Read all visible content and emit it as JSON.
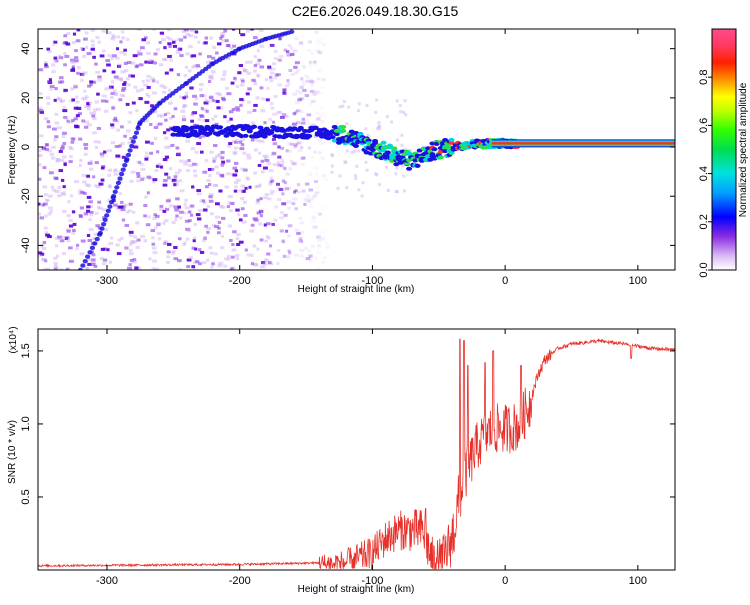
{
  "title": "C2E6.2026.049.18.30.G15",
  "chart_data": [
    {
      "type": "heatmap",
      "name": "spectrogram",
      "xlabel": "Height of straight line (km)",
      "ylabel": "Frequency (Hz)",
      "xlim": [
        -352,
        128
      ],
      "ylim": [
        -50,
        48
      ],
      "xticks": [
        -300,
        -200,
        -100,
        0,
        100
      ],
      "yticks": [
        -40,
        -20,
        0,
        20,
        40
      ],
      "colorbar": {
        "label": "Normalized spectral amplitude",
        "range": [
          0,
          1
        ],
        "ticks": [
          "0.0",
          "0.2",
          "0.4",
          "0.6",
          "0.8"
        ],
        "tick_values": [
          0,
          0.2,
          0.4,
          0.6,
          0.8
        ]
      },
      "noise_region_x": [
        -352,
        -132
      ],
      "main_line": [
        [
          -250,
          6
        ],
        [
          -200,
          6.5
        ],
        [
          -150,
          6
        ],
        [
          -120,
          5
        ],
        [
          -100,
          0
        ],
        [
          -80,
          -4
        ],
        [
          -70,
          -6
        ],
        [
          -60,
          -3
        ],
        [
          -50,
          -1
        ],
        [
          -40,
          0
        ],
        [
          -30,
          1
        ],
        [
          -10,
          1.5
        ],
        [
          0,
          1.5
        ],
        [
          20,
          1.5
        ],
        [
          60,
          1.5
        ],
        [
          100,
          1.5
        ],
        [
          128,
          1.5
        ]
      ],
      "secondary_traces": [
        {
          "name": "descending-trace",
          "points": [
            [
              -320,
              -50
            ],
            [
              -305,
              -35
            ],
            [
              -295,
              -20
            ],
            [
              -285,
              -5
            ],
            [
              -275,
              10
            ]
          ]
        },
        {
          "name": "ascending-trace",
          "points": [
            [
              -275,
              10
            ],
            [
              -260,
              18
            ],
            [
              -240,
              26
            ],
            [
              -220,
              34
            ],
            [
              -200,
              40
            ],
            [
              -180,
              44
            ],
            [
              -160,
              47
            ]
          ]
        }
      ]
    },
    {
      "type": "line",
      "name": "snr",
      "xlabel": "Height of straight line (km)",
      "ylabel": "SNR (10 * v/v)",
      "multiplier": "(x10⁴)",
      "xlim": [
        -352,
        128
      ],
      "ylim": [
        0,
        1.65
      ],
      "xticks": [
        -300,
        -200,
        -100,
        0,
        100
      ],
      "yticks": [
        "0.5",
        "1.0",
        "1.5"
      ],
      "ytick_values": [
        0.5,
        1.0,
        1.5
      ],
      "color": "#e8302a",
      "envelope": [
        [
          -352,
          0.03
        ],
        [
          -200,
          0.04
        ],
        [
          -140,
          0.05
        ],
        [
          -120,
          0.07
        ],
        [
          -100,
          0.14
        ],
        [
          -90,
          0.24
        ],
        [
          -80,
          0.3
        ],
        [
          -70,
          0.3
        ],
        [
          -62,
          0.3
        ],
        [
          -55,
          0.1
        ],
        [
          -48,
          0.08
        ],
        [
          -40,
          0.25
        ],
        [
          -35,
          0.5
        ],
        [
          -30,
          0.68
        ],
        [
          -25,
          0.8
        ],
        [
          -20,
          0.9
        ],
        [
          -10,
          1.0
        ],
        [
          0,
          1.0
        ],
        [
          10,
          1.02
        ],
        [
          20,
          1.2
        ],
        [
          25,
          1.35
        ],
        [
          30,
          1.45
        ],
        [
          40,
          1.52
        ],
        [
          50,
          1.55
        ],
        [
          70,
          1.57
        ],
        [
          90,
          1.55
        ],
        [
          110,
          1.52
        ],
        [
          128,
          1.51
        ]
      ],
      "spikes": [
        [
          -34,
          1.58
        ],
        [
          -31,
          1.57
        ],
        [
          -28,
          1.4
        ],
        [
          -15,
          1.42
        ],
        [
          -9,
          1.5
        ],
        [
          12,
          1.4
        ],
        [
          -60,
          0.42
        ],
        [
          95,
          1.45
        ]
      ]
    }
  ]
}
